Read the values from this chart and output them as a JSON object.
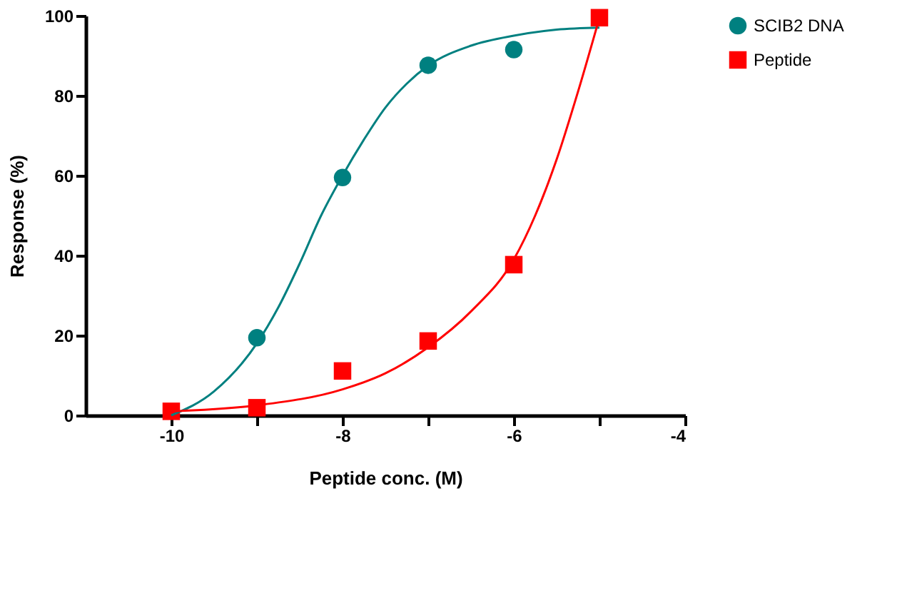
{
  "chart_data": {
    "type": "scatter",
    "xlabel": "Peptide conc. (M)",
    "ylabel": "Response (%)",
    "xlim": [
      -11,
      -4
    ],
    "xticks": [
      -10,
      {
        "value": -9,
        "label": null
      },
      -8,
      {
        "value": -7,
        "label": null
      },
      -6,
      {
        "value": -5,
        "label": null
      },
      -4
    ],
    "ylim": [
      0,
      100
    ],
    "yticks": [
      0,
      20,
      40,
      60,
      80,
      100
    ],
    "grid": false,
    "legend": "right",
    "series": [
      {
        "name": "SCIB2 DNA",
        "color": "#008080",
        "marker": "circle",
        "x": [
          -9,
          -8,
          -7,
          -6
        ],
        "values": [
          19.4,
          59.5,
          87.6,
          91.5
        ]
      },
      {
        "name": "Peptide",
        "color": "#ff0000",
        "marker": "square",
        "x": [
          -10,
          -9,
          -8,
          -7,
          -6,
          -5
        ],
        "values": [
          1,
          1.9,
          11.1,
          18.6,
          37.7,
          99.5
        ]
      },
      {
        "type": "line",
        "color": "#008080",
        "x": [
          -10,
          -9.5,
          -9,
          -8.75,
          -8.5,
          -8.25,
          -8,
          -7.75,
          -7.5,
          -7.25,
          -7,
          -6.5,
          -6,
          -5.5,
          -5
        ],
        "values": [
          0,
          6,
          18,
          27,
          38,
          50,
          60,
          69,
          77,
          83,
          87.5,
          92.5,
          95,
          96.5,
          97
        ]
      },
      {
        "type": "line",
        "color": "#ff0000",
        "x": [
          -10,
          -9,
          -8,
          -7.5,
          -7,
          -6.5,
          -6,
          -5.75,
          -5.5,
          -5.25,
          -5
        ],
        "values": [
          1,
          2.5,
          6.5,
          10.5,
          17,
          26,
          39,
          50,
          64,
          81,
          99.5
        ]
      }
    ]
  }
}
